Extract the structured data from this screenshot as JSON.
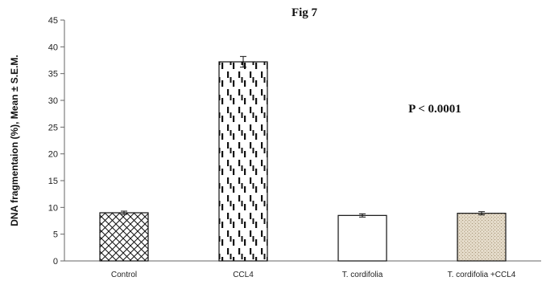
{
  "chart_data": {
    "type": "bar",
    "title": "Fig 7",
    "ylabel": "DNA fragmentaion (%), Mean ± S.E.M.",
    "xlabel": "",
    "ylim": [
      0,
      45
    ],
    "yticks": [
      0,
      5,
      10,
      15,
      20,
      25,
      30,
      35,
      40,
      45
    ],
    "categories": [
      "Control",
      "CCL4",
      "T. cordifolia",
      "T. cordifolia +CCL4"
    ],
    "values": [
      9.0,
      37.2,
      8.5,
      8.9
    ],
    "errors": [
      0.3,
      1.0,
      0.3,
      0.3
    ],
    "patterns": [
      "crosshatch",
      "vertical-dashes",
      "none",
      "speckle"
    ],
    "annotation": "P < 0.0001",
    "grid": false,
    "legend": "none"
  }
}
